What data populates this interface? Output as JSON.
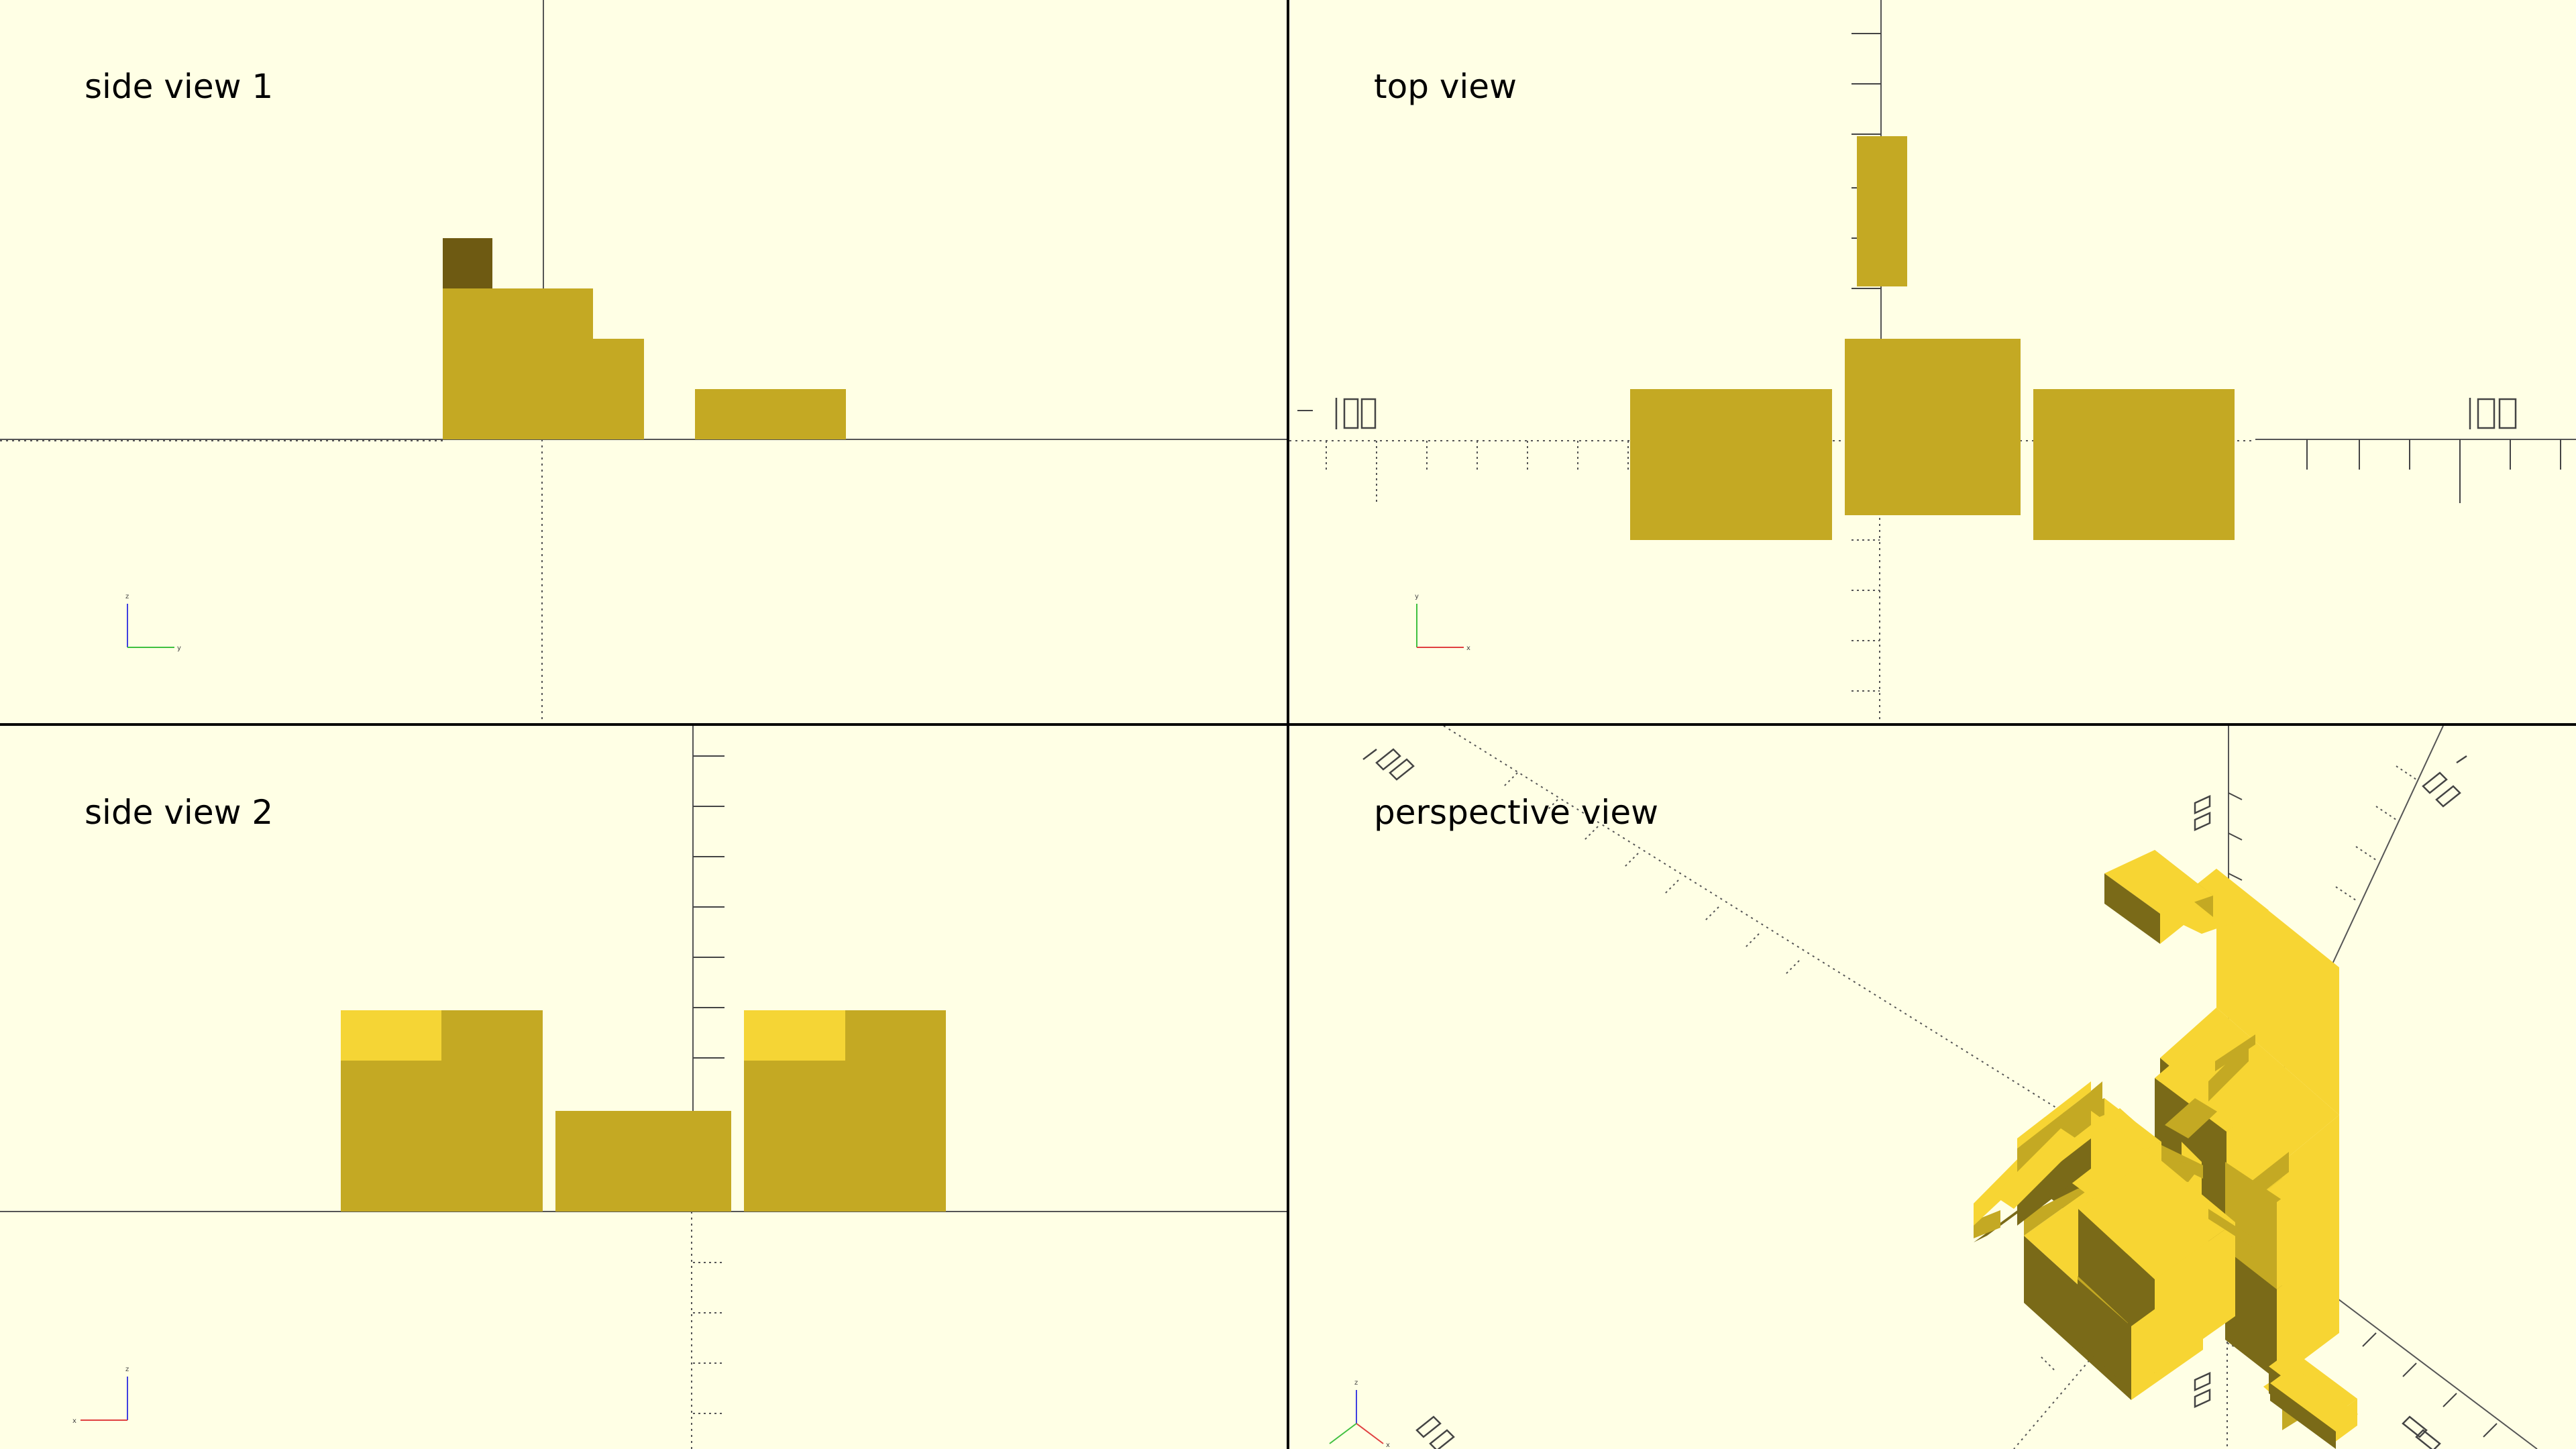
{
  "views": {
    "side1": {
      "label": "side view 1"
    },
    "top": {
      "label": "top view"
    },
    "side2": {
      "label": "side view 2"
    },
    "perspective": {
      "label": "perspective view"
    }
  },
  "gizmos": {
    "side1": {
      "up": "z",
      "right": "y"
    },
    "top": {
      "up": "y",
      "right": "x"
    },
    "side2": {
      "up": "z",
      "right": "x"
    },
    "perspective": {
      "up": "z",
      "right": "x"
    }
  },
  "colors": {
    "background": "#ffffe5",
    "model": "#c4a923",
    "model_light": "#f7d533",
    "model_dark": "#7a6a18",
    "model_shadow": "#6e5a12",
    "divider": "#000000",
    "axis_x": "#e04040",
    "axis_y": "#40c040",
    "axis_z": "#4040e0"
  }
}
